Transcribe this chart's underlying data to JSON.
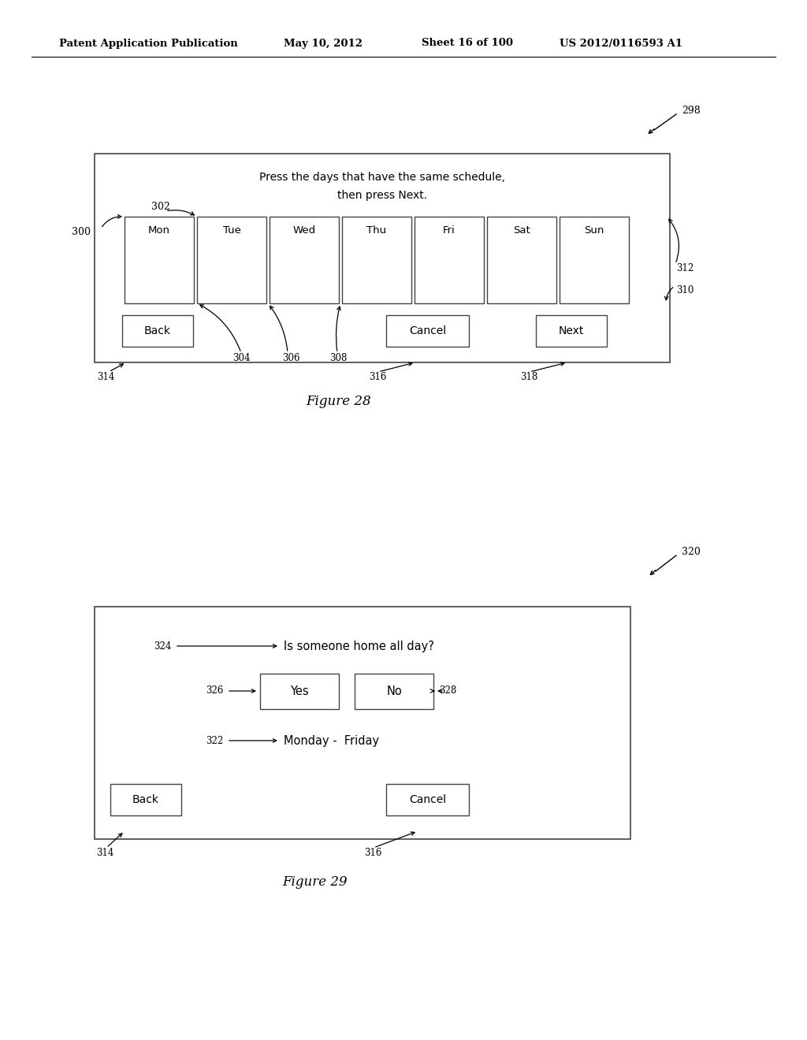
{
  "bg_color": "#ffffff",
  "header_text": "Patent Application Publication",
  "header_date": "May 10, 2012",
  "header_sheet": "Sheet 16 of 100",
  "header_patent": "US 2012/0116593 A1",
  "fig1": {
    "title_line1": "Press the days that have the same schedule,",
    "title_line2": "then press Next.",
    "days": [
      "Mon",
      "Tue",
      "Wed",
      "Thu",
      "Fri",
      "Sat",
      "Sun"
    ],
    "btn_back": "Back",
    "btn_cancel": "Cancel",
    "btn_next": "Next",
    "figure_label": "Figure 28"
  },
  "fig2": {
    "question": "Is someone home all day?",
    "btn_yes": "Yes",
    "btn_no": "No",
    "days_text": "Monday -  Friday",
    "btn_back": "Back",
    "btn_cancel": "Cancel",
    "figure_label": "Figure 29"
  }
}
